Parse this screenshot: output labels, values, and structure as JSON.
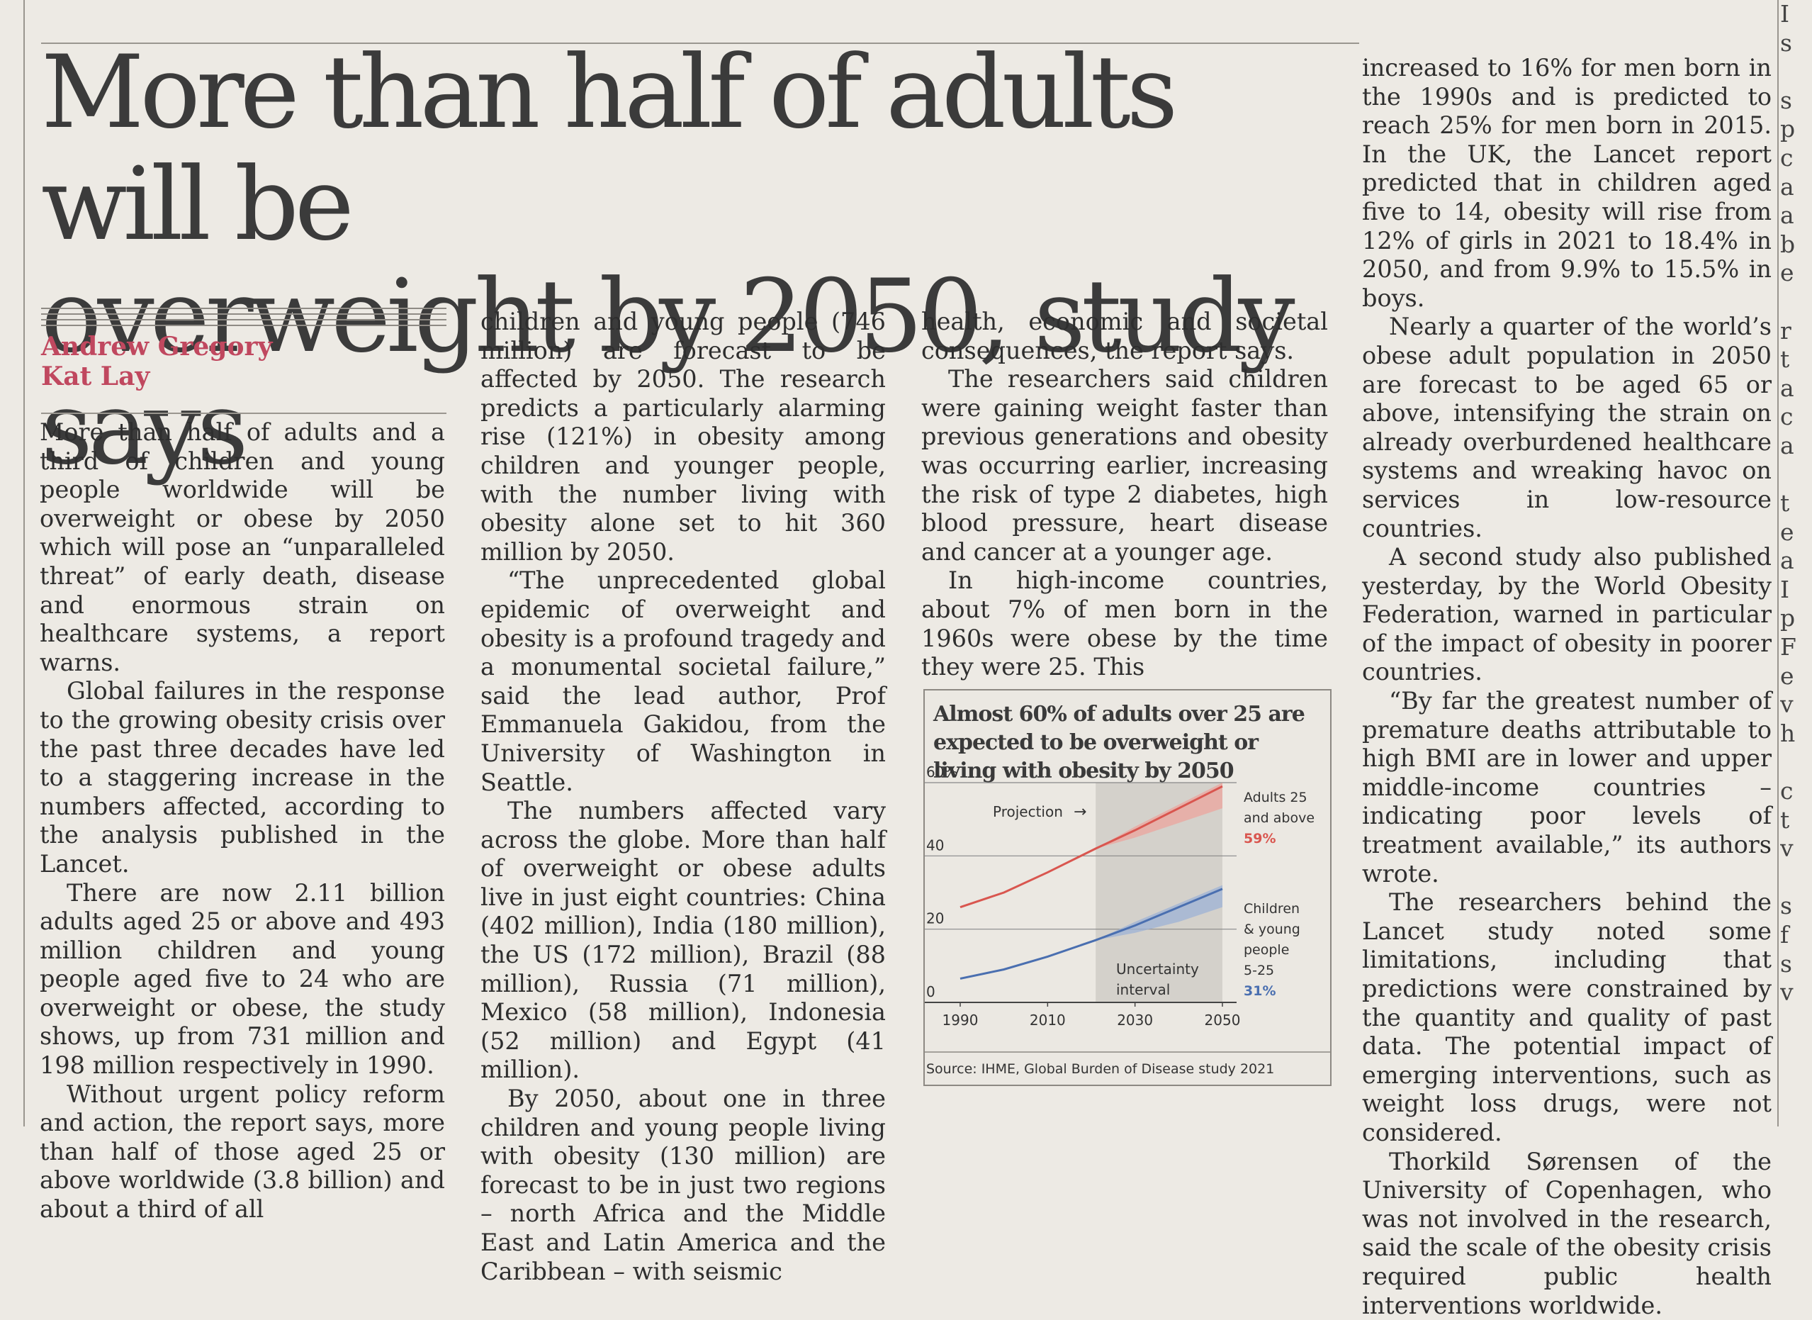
{
  "article": {
    "headline_line1": "More than half of adults will be",
    "headline_line2": "overweight by 2050, study says",
    "authors": [
      "Andrew Gregory",
      "Kat Lay"
    ],
    "col1": [
      "More than half of adults and a third of children and young people worldwide will be overweight or obese by 2050 which will pose an “unparalleled threat” of early death, disease and enormous strain on healthcare systems, a report warns.",
      "Global failures in the response to the growing obesity crisis over the past three decades have led to a staggering increase in the numbers affected, according to the analysis published in the Lancet.",
      "There are now 2.11 billion adults aged 25 or above and 493 million children and young people aged five to 24 who are overweight or obese, the study shows, up from 731 million and 198 million respectively in 1990.",
      "Without urgent policy reform and action, the report says, more than half of those aged 25 or above worldwide (3.8 billion) and about a third of all"
    ],
    "col2": [
      "children and young people (746 million) are forecast to be affected by 2050. The research predicts a particularly alarming rise (121%) in obesity among children and younger people, with the number living with obesity alone set to hit 360 million by 2050.",
      "“The unprecedented global epidemic of overweight and obesity is a profound tragedy and a monumental societal failure,” said the lead author, Prof Emmanuela Gakidou, from the University of Washington in Seattle.",
      "The numbers affected vary across the globe. More than half of overweight or obese adults live in just eight countries: China (402 million), India (180 million), the US (172 million), Brazil (88 million), Russia (71 million), Mexico (58 million), Indonesia (52 million) and Egypt (41 million).",
      "By 2050, about one in three children and young people living with obesity (130 million) are forecast to be in just two regions – north Africa and the Middle East and Latin America and the Caribbean – with seismic"
    ],
    "col3": [
      "health, economic and societal consequences, the report says.",
      "The researchers said children were gaining weight faster than previous generations and obesity was occurring earlier, increasing the risk of type 2 diabetes, high blood pressure, heart disease and cancer at a younger age.",
      "In high-income countries, about 7% of men born in the 1960s were obese by the time they were 25. This"
    ],
    "col4": [
      "increased to 16% for men born in the 1990s and is predicted to reach 25% for men born in 2015. In the UK, the Lancet report predicted that in children aged five to 14, obesity will rise from 12% of girls in 2021 to 18.4% in 2050, and from 9.9% to 15.5% in boys.",
      "Nearly a quarter of the world’s obese adult population in 2050 are forecast to be aged 65 or above, intensifying the strain on already overburdened healthcare systems and wreaking havoc on services in low-resource countries.",
      "A second study also published yesterday, by the World Obesity Federation, warned in particular of the impact of obesity in poorer countries.",
      "“By far the greatest number of premature deaths attributable to high BMI are in lower and upper middle-income countries – indicating poor levels of treatment available,” its authors wrote.",
      "The researchers behind the Lancet study noted some limitations, including that predictions were constrained by the quantity and quality of past data. The potential impact of emerging interventions, such as weight loss drugs, were not considered.",
      "Thorkild Sørensen of the University of Copenhagen, who was not involved in the research, said the scale of the obesity crisis required public health interventions worldwide."
    ],
    "right_edge_letters": [
      "I",
      "s",
      "",
      "s",
      "p",
      "c",
      "a",
      "a",
      "b",
      "e",
      "",
      "r",
      "t",
      "a",
      "c",
      "a",
      "",
      "t",
      "e",
      "a",
      "I",
      "p",
      "F",
      "e",
      "v",
      "h",
      "",
      "c",
      "t",
      "v",
      "",
      "s",
      "f",
      "s",
      "v"
    ]
  },
  "chart_data": {
    "type": "line",
    "title": "Almost 60% of adults over 25 are expected to be overweight or living with obesity by 2050",
    "source": "Source: IHME, Global Burden of Disease study 2021",
    "x_ticks": [
      "1990",
      "2010",
      "2030",
      "2050"
    ],
    "y_ticks": [
      "60%",
      "40",
      "20",
      "0"
    ],
    "xlim": [
      1990,
      2050
    ],
    "ylim": [
      0,
      60
    ],
    "projection_start": 2021,
    "projection_label": "Projection",
    "projection_arrow": "→",
    "band_label_line1": "Uncertainty",
    "band_label_line2": "interval",
    "series": [
      {
        "label_lines": [
          "Adults 25",
          "and above"
        ],
        "end_value_label": "59%",
        "color": "#d9564f",
        "band_color": "#eca49e",
        "x": [
          1990,
          2000,
          2010,
          2021,
          2030,
          2040,
          2050
        ],
        "y": [
          26,
          30,
          35.5,
          42,
          47,
          53,
          59
        ],
        "band_low": [
          26,
          30,
          35.5,
          42,
          45,
          49,
          53
        ],
        "band_high": [
          26,
          30,
          35.5,
          42,
          48,
          54,
          60
        ]
      },
      {
        "label_lines": [
          "Children",
          "& young",
          "people",
          "5-25"
        ],
        "end_value_label": "31%",
        "color": "#4a6fb0",
        "band_color": "#9db1d6",
        "x": [
          1990,
          2000,
          2010,
          2021,
          2030,
          2040,
          2050
        ],
        "y": [
          6.5,
          9,
          12.5,
          17,
          21,
          26,
          31
        ],
        "band_low": [
          6.5,
          9,
          12.5,
          17,
          19,
          22,
          26
        ],
        "band_high": [
          6.5,
          9,
          12.5,
          17,
          22,
          27,
          32
        ]
      }
    ]
  }
}
